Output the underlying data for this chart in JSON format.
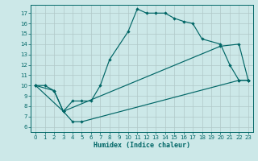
{
  "xlabel": "Humidex (Indice chaleur)",
  "bg_color": "#cce8e8",
  "grid_color": "#b0c8c8",
  "line_color": "#006666",
  "xlim": [
    -0.5,
    23.5
  ],
  "ylim": [
    5.5,
    17.8
  ],
  "xticks": [
    0,
    1,
    2,
    3,
    4,
    5,
    6,
    7,
    8,
    9,
    10,
    11,
    12,
    13,
    14,
    15,
    16,
    17,
    18,
    19,
    20,
    21,
    22,
    23
  ],
  "yticks": [
    6,
    7,
    8,
    9,
    10,
    11,
    12,
    13,
    14,
    15,
    16,
    17
  ],
  "line1_x": [
    0,
    1,
    2,
    3,
    4,
    5,
    6,
    7,
    8,
    10,
    11,
    12,
    13,
    14,
    15,
    16,
    17,
    18,
    20,
    21,
    22,
    23
  ],
  "line1_y": [
    10,
    10,
    9.5,
    7.5,
    8.5,
    8.5,
    8.5,
    10,
    12.5,
    15.2,
    17.4,
    17.0,
    17.0,
    17.0,
    16.5,
    16.2,
    16.0,
    14.5,
    14.0,
    12.0,
    10.5,
    10.5
  ],
  "line2_x": [
    0,
    2,
    3,
    4,
    5,
    22,
    23
  ],
  "line2_y": [
    10,
    9.5,
    7.5,
    6.5,
    6.5,
    10.5,
    10.5
  ],
  "line3_x": [
    0,
    3,
    20,
    22,
    23
  ],
  "line3_y": [
    10,
    7.5,
    13.8,
    14.0,
    10.5
  ]
}
